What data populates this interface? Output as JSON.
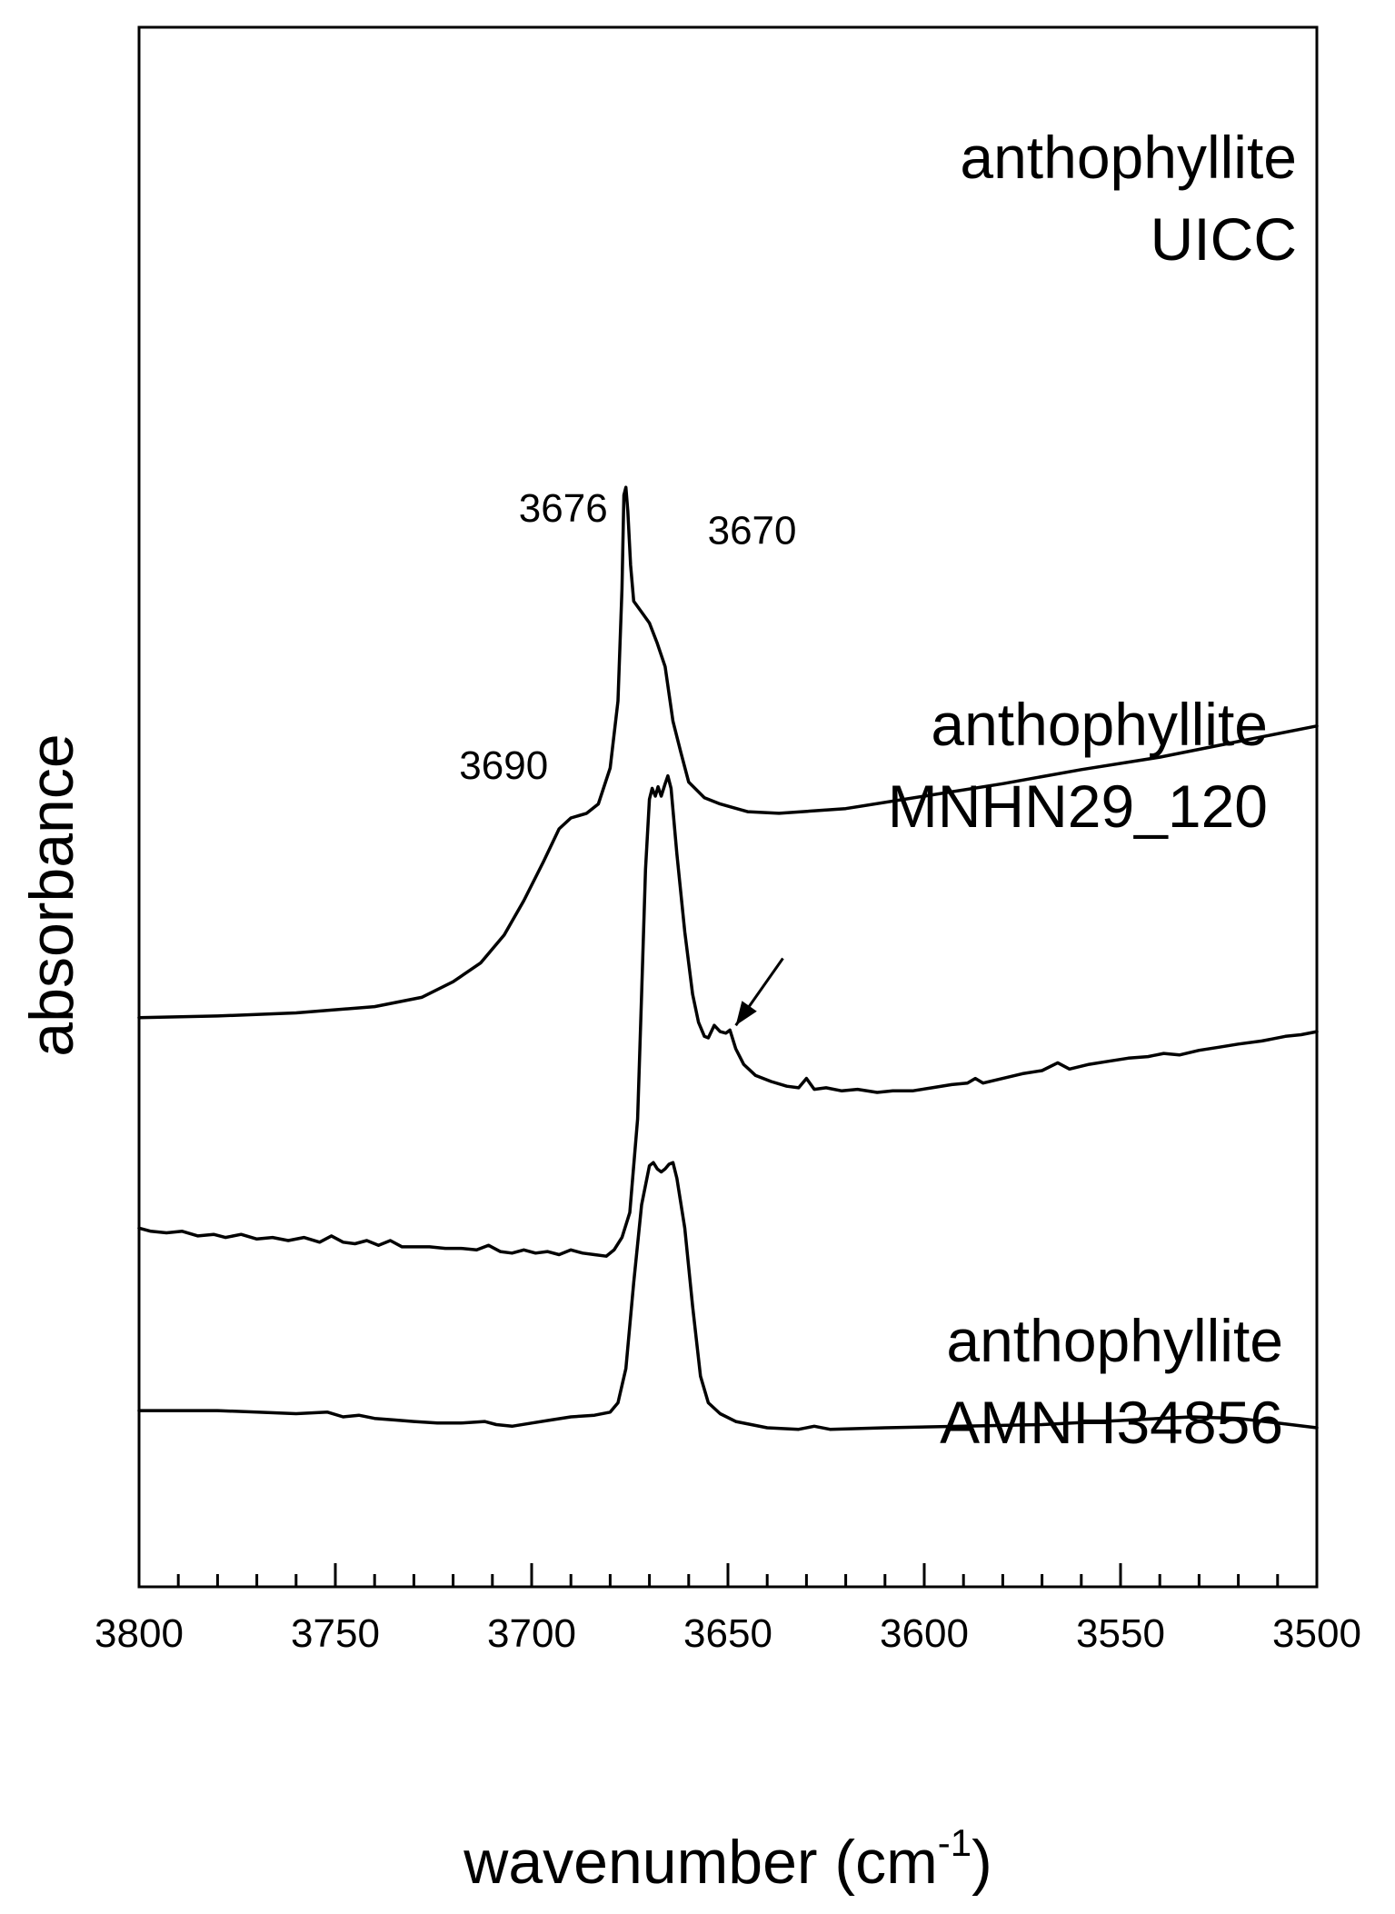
{
  "chart_data": {
    "type": "line",
    "xlabel": "wavenumber (cm",
    "xlabel_superscript": "-1",
    "xlabel_close": ")",
    "ylabel": "absorbance",
    "xlim": [
      3800,
      3500
    ],
    "x_reversed": true,
    "x_ticks": [
      "3800",
      "3750",
      "3700",
      "3650",
      "3600",
      "3550",
      "3500"
    ],
    "grid": false,
    "series": [
      {
        "name": "anthophyllite UICC",
        "label_lines": [
          "anthophyllite",
          "UICC"
        ],
        "points": [
          [
            3800,
            0.365
          ],
          [
            3780,
            0.366
          ],
          [
            3760,
            0.368
          ],
          [
            3740,
            0.372
          ],
          [
            3728,
            0.378
          ],
          [
            3720,
            0.388
          ],
          [
            3713,
            0.4
          ],
          [
            3707,
            0.418
          ],
          [
            3702,
            0.44
          ],
          [
            3697,
            0.465
          ],
          [
            3693,
            0.486
          ],
          [
            3690,
            0.493
          ],
          [
            3686,
            0.496
          ],
          [
            3683,
            0.502
          ],
          [
            3680,
            0.525
          ],
          [
            3678,
            0.568
          ],
          [
            3677,
            0.64
          ],
          [
            3676.5,
            0.7
          ],
          [
            3676,
            0.705
          ],
          [
            3675.5,
            0.69
          ],
          [
            3674.8,
            0.655
          ],
          [
            3674,
            0.632
          ],
          [
            3672,
            0.625
          ],
          [
            3670,
            0.618
          ],
          [
            3668,
            0.605
          ],
          [
            3666,
            0.59
          ],
          [
            3664,
            0.555
          ],
          [
            3662,
            0.535
          ],
          [
            3660,
            0.516
          ],
          [
            3656,
            0.506
          ],
          [
            3652,
            0.502
          ],
          [
            3645,
            0.497
          ],
          [
            3637,
            0.496
          ],
          [
            3620,
            0.499
          ],
          [
            3600,
            0.507
          ],
          [
            3580,
            0.515
          ],
          [
            3560,
            0.524
          ],
          [
            3540,
            0.532
          ],
          [
            3520,
            0.542
          ],
          [
            3500,
            0.552
          ]
        ]
      },
      {
        "name": "anthophyllite MNHN29_120",
        "label_lines": [
          "anthophyllite",
          "MNHN29_120"
        ],
        "points": [
          [
            3800,
            0.23
          ],
          [
            3797,
            0.228
          ],
          [
            3793,
            0.227
          ],
          [
            3789,
            0.228
          ],
          [
            3785,
            0.225
          ],
          [
            3781,
            0.226
          ],
          [
            3778,
            0.224
          ],
          [
            3774,
            0.226
          ],
          [
            3770,
            0.223
          ],
          [
            3766,
            0.224
          ],
          [
            3762,
            0.222
          ],
          [
            3758,
            0.224
          ],
          [
            3754,
            0.221
          ],
          [
            3751,
            0.225
          ],
          [
            3748,
            0.221
          ],
          [
            3745,
            0.22
          ],
          [
            3742,
            0.222
          ],
          [
            3739,
            0.219
          ],
          [
            3736,
            0.222
          ],
          [
            3733,
            0.218
          ],
          [
            3730,
            0.218
          ],
          [
            3726,
            0.218
          ],
          [
            3722,
            0.217
          ],
          [
            3718,
            0.217
          ],
          [
            3714,
            0.216
          ],
          [
            3711,
            0.219
          ],
          [
            3708,
            0.215
          ],
          [
            3705,
            0.214
          ],
          [
            3702,
            0.216
          ],
          [
            3699,
            0.214
          ],
          [
            3696,
            0.215
          ],
          [
            3693,
            0.213
          ],
          [
            3690,
            0.216
          ],
          [
            3687,
            0.214
          ],
          [
            3684,
            0.213
          ],
          [
            3681,
            0.212
          ],
          [
            3679,
            0.216
          ],
          [
            3677,
            0.224
          ],
          [
            3675,
            0.24
          ],
          [
            3673,
            0.3
          ],
          [
            3672,
            0.38
          ],
          [
            3671,
            0.46
          ],
          [
            3670,
            0.505
          ],
          [
            3669.3,
            0.512
          ],
          [
            3668.5,
            0.507
          ],
          [
            3667.8,
            0.513
          ],
          [
            3667,
            0.507
          ],
          [
            3666,
            0.515
          ],
          [
            3665.3,
            0.52
          ],
          [
            3664.5,
            0.512
          ],
          [
            3663,
            0.47
          ],
          [
            3661,
            0.42
          ],
          [
            3659,
            0.38
          ],
          [
            3657.5,
            0.362
          ],
          [
            3656,
            0.353
          ],
          [
            3655,
            0.352
          ],
          [
            3653.5,
            0.36
          ],
          [
            3652,
            0.356
          ],
          [
            3650.5,
            0.355
          ],
          [
            3649.5,
            0.357
          ],
          [
            3648,
            0.345
          ],
          [
            3646,
            0.335
          ],
          [
            3643,
            0.328
          ],
          [
            3639,
            0.324
          ],
          [
            3635,
            0.321
          ],
          [
            3632,
            0.32
          ],
          [
            3630,
            0.326
          ],
          [
            3628,
            0.319
          ],
          [
            3625,
            0.32
          ],
          [
            3621,
            0.318
          ],
          [
            3617,
            0.319
          ],
          [
            3612,
            0.317
          ],
          [
            3608,
            0.318
          ],
          [
            3603,
            0.318
          ],
          [
            3598,
            0.32
          ],
          [
            3593,
            0.322
          ],
          [
            3589,
            0.323
          ],
          [
            3587,
            0.326
          ],
          [
            3585,
            0.323
          ],
          [
            3580,
            0.326
          ],
          [
            3575,
            0.329
          ],
          [
            3570,
            0.331
          ],
          [
            3566,
            0.336
          ],
          [
            3563,
            0.332
          ],
          [
            3558,
            0.335
          ],
          [
            3553,
            0.337
          ],
          [
            3548,
            0.339
          ],
          [
            3543,
            0.34
          ],
          [
            3539,
            0.342
          ],
          [
            3535,
            0.341
          ],
          [
            3530,
            0.344
          ],
          [
            3525,
            0.346
          ],
          [
            3520,
            0.348
          ],
          [
            3514,
            0.35
          ],
          [
            3508,
            0.353
          ],
          [
            3504,
            0.354
          ],
          [
            3500,
            0.356
          ]
        ]
      },
      {
        "name": "anthophyllite AMNH34856",
        "label_lines": [
          "anthophyllite",
          "AMNH34856"
        ],
        "points": [
          [
            3800,
            0.113
          ],
          [
            3790,
            0.113
          ],
          [
            3780,
            0.113
          ],
          [
            3770,
            0.112
          ],
          [
            3760,
            0.111
          ],
          [
            3752,
            0.112
          ],
          [
            3748,
            0.109
          ],
          [
            3744,
            0.11
          ],
          [
            3740,
            0.108
          ],
          [
            3735,
            0.107
          ],
          [
            3730,
            0.106
          ],
          [
            3724,
            0.105
          ],
          [
            3718,
            0.105
          ],
          [
            3712,
            0.106
          ],
          [
            3709,
            0.104
          ],
          [
            3705,
            0.103
          ],
          [
            3700,
            0.105
          ],
          [
            3695,
            0.107
          ],
          [
            3690,
            0.109
          ],
          [
            3684,
            0.11
          ],
          [
            3680,
            0.112
          ],
          [
            3678,
            0.118
          ],
          [
            3676,
            0.14
          ],
          [
            3674,
            0.195
          ],
          [
            3672,
            0.245
          ],
          [
            3670,
            0.27
          ],
          [
            3669,
            0.272
          ],
          [
            3668,
            0.268
          ],
          [
            3667,
            0.266
          ],
          [
            3666,
            0.268
          ],
          [
            3665,
            0.271
          ],
          [
            3664,
            0.272
          ],
          [
            3663,
            0.262
          ],
          [
            3661,
            0.23
          ],
          [
            3659,
            0.18
          ],
          [
            3657,
            0.135
          ],
          [
            3655,
            0.118
          ],
          [
            3652,
            0.111
          ],
          [
            3648,
            0.106
          ],
          [
            3640,
            0.102
          ],
          [
            3632,
            0.101
          ],
          [
            3628,
            0.103
          ],
          [
            3624,
            0.101
          ],
          [
            3610,
            0.102
          ],
          [
            3590,
            0.103
          ],
          [
            3570,
            0.104
          ],
          [
            3555,
            0.106
          ],
          [
            3540,
            0.108
          ],
          [
            3532,
            0.109
          ],
          [
            3520,
            0.108
          ],
          [
            3510,
            0.105
          ],
          [
            3500,
            0.102
          ]
        ]
      }
    ],
    "annotations": [
      {
        "text": "3676",
        "target": [
          3676,
          0.705
        ]
      },
      {
        "text": "3670",
        "target": [
          3670,
          0.618
        ]
      },
      {
        "text": "3690",
        "target": [
          3690,
          0.493
        ]
      },
      {
        "type": "arrow",
        "from": [
          3636,
          0.403
        ],
        "to": [
          3648,
          0.36
        ]
      }
    ]
  }
}
